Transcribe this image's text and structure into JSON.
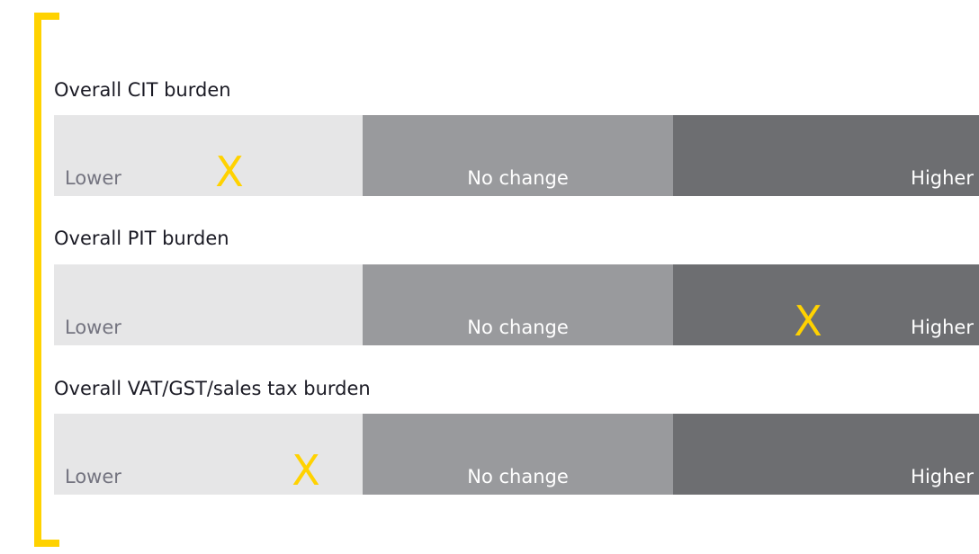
{
  "rows": [
    {
      "title": "Overall CIT burden",
      "segments": [
        "Lower",
        "No change",
        "Higher"
      ],
      "marker": "X",
      "marker_segment": 0
    },
    {
      "title": "Overall PIT burden",
      "segments": [
        "Lower",
        "No change",
        "Higher"
      ],
      "marker": "X",
      "marker_segment": 2
    },
    {
      "title": "Overall VAT/GST/sales tax burden",
      "segments": [
        "Lower",
        "No change",
        "Higher"
      ],
      "marker": "X",
      "marker_segment": 0
    }
  ]
}
